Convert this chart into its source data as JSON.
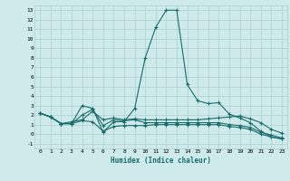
{
  "xlabel": "Humidex (Indice chaleur)",
  "background_color": "#ceeaea",
  "grid_color": "#aacfcf",
  "line_color": "#1a6b6b",
  "xlim": [
    -0.5,
    23.5
  ],
  "ylim": [
    -1.5,
    13.5
  ],
  "xticks": [
    0,
    1,
    2,
    3,
    4,
    5,
    6,
    7,
    8,
    9,
    10,
    11,
    12,
    13,
    14,
    15,
    16,
    17,
    18,
    19,
    20,
    21,
    22,
    23
  ],
  "yticks": [
    -1,
    0,
    1,
    2,
    3,
    4,
    5,
    6,
    7,
    8,
    9,
    10,
    11,
    12,
    13
  ],
  "series": [
    {
      "x": [
        0,
        1,
        2,
        3,
        4,
        5,
        6,
        7,
        8,
        9,
        10,
        11,
        12,
        13,
        14,
        15,
        16,
        17,
        18,
        19,
        20,
        21,
        22,
        23
      ],
      "y": [
        2.2,
        1.8,
        1.1,
        1.1,
        3.0,
        2.7,
        0.2,
        1.3,
        1.3,
        2.7,
        8.0,
        11.2,
        13.0,
        13.0,
        5.2,
        3.5,
        3.2,
        3.3,
        2.1,
        1.7,
        1.2,
        0.3,
        -0.3,
        -0.5
      ]
    },
    {
      "x": [
        0,
        1,
        2,
        3,
        4,
        5,
        6,
        7,
        8,
        9,
        10,
        11,
        12,
        13,
        14,
        15,
        16,
        17,
        18,
        19,
        20,
        21,
        22,
        23
      ],
      "y": [
        2.2,
        1.8,
        1.1,
        1.3,
        1.5,
        2.4,
        1.5,
        1.7,
        1.5,
        1.6,
        1.5,
        1.5,
        1.5,
        1.5,
        1.5,
        1.5,
        1.6,
        1.7,
        1.8,
        1.9,
        1.6,
        1.2,
        0.5,
        0.1
      ]
    },
    {
      "x": [
        0,
        1,
        2,
        3,
        4,
        5,
        6,
        7,
        8,
        9,
        10,
        11,
        12,
        13,
        14,
        15,
        16,
        17,
        18,
        19,
        20,
        21,
        22,
        23
      ],
      "y": [
        2.2,
        1.8,
        1.1,
        1.1,
        1.4,
        1.3,
        0.3,
        0.8,
        0.9,
        0.9,
        0.9,
        1.0,
        1.0,
        1.0,
        1.0,
        1.0,
        1.0,
        1.0,
        0.8,
        0.7,
        0.5,
        0.0,
        -0.3,
        -0.5
      ]
    },
    {
      "x": [
        0,
        1,
        2,
        3,
        4,
        5,
        6,
        7,
        8,
        9,
        10,
        11,
        12,
        13,
        14,
        15,
        16,
        17,
        18,
        19,
        20,
        21,
        22,
        23
      ],
      "y": [
        2.2,
        1.8,
        1.1,
        1.1,
        2.0,
        2.6,
        0.9,
        1.5,
        1.4,
        1.5,
        1.2,
        1.2,
        1.2,
        1.2,
        1.2,
        1.2,
        1.2,
        1.2,
        1.0,
        0.9,
        0.7,
        0.2,
        -0.1,
        -0.4
      ]
    }
  ]
}
